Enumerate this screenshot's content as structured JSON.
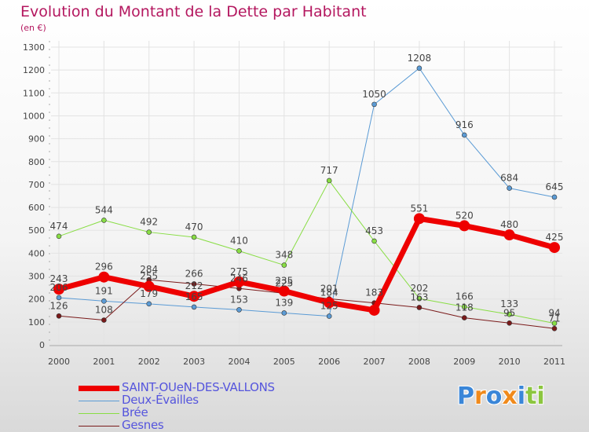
{
  "title": "Evolution du Montant de la Dette par Habitant",
  "subtitle": "(en €)",
  "chart_data": {
    "type": "line",
    "x": [
      "2000",
      "2001",
      "2002",
      "2003",
      "2004",
      "2005",
      "2006",
      "2007",
      "2008",
      "2009",
      "2010",
      "2011"
    ],
    "ylim": [
      0,
      1300
    ],
    "yticks": [
      "0",
      "100",
      "200",
      "300",
      "400",
      "500",
      "600",
      "700",
      "800",
      "900",
      "1000",
      "1100",
      "1200",
      "1300"
    ],
    "grid": true,
    "legend_position": "bottom-left",
    "series": [
      {
        "name": "Deux-Évailles",
        "color": "#5b9bd5",
        "width": 1,
        "values": [
          206,
          191,
          179,
          165,
          153,
          139,
          125,
          1050,
          1208,
          916,
          684,
          645
        ],
        "labels": [
          "206",
          "191",
          "179",
          "165",
          "153",
          "139",
          "125",
          "1050",
          "1208",
          "916",
          "684",
          "645"
        ]
      },
      {
        "name": "Brée",
        "color": "#88dd44",
        "width": 1,
        "values": [
          474,
          544,
          492,
          470,
          410,
          348,
          717,
          453,
          202,
          166,
          133,
          94
        ],
        "labels": [
          "474",
          "544",
          "492",
          "470",
          "410",
          "348",
          "717",
          "453",
          "202",
          "166",
          "133",
          "94"
        ]
      },
      {
        "name": "Gesnes",
        "color": "#7a1a1a",
        "width": 1,
        "values": [
          126,
          108,
          284,
          266,
          246,
          225,
          201,
          183,
          163,
          118,
          95,
          71
        ],
        "labels": [
          "126",
          "108",
          "284",
          "266",
          "246",
          "225",
          "201",
          "183",
          "163",
          "118",
          "95",
          "71"
        ]
      },
      {
        "name": "SAINT-OUeN-DES-VALLONS",
        "color": "#ee0000",
        "width": 7,
        "values": [
          243,
          296,
          255,
          212,
          275,
          235,
          184,
          151,
          551,
          520,
          480,
          425
        ],
        "labels": [
          "243",
          "296",
          "255",
          "212",
          "275",
          "235",
          "184",
          "",
          "551",
          "520",
          "480",
          "425"
        ]
      }
    ]
  },
  "legend": [
    {
      "label": "SAINT-OUeN-DES-VALLONS",
      "color": "#ee0000",
      "height": 7
    },
    {
      "label": "Deux-Évailles",
      "color": "#5b9bd5",
      "height": 1
    },
    {
      "label": "Brée",
      "color": "#88dd44",
      "height": 1
    },
    {
      "label": "Gesnes",
      "color": "#7a1a1a",
      "height": 1
    }
  ],
  "logo": {
    "letters": [
      "P",
      "r",
      "o",
      "x",
      "i",
      "t",
      "i"
    ],
    "colors": [
      "#3a86d8",
      "#f08a1c",
      "#3a86d8",
      "#f08a1c",
      "#3a86d8",
      "#8cc63f",
      "#8cc63f"
    ]
  }
}
